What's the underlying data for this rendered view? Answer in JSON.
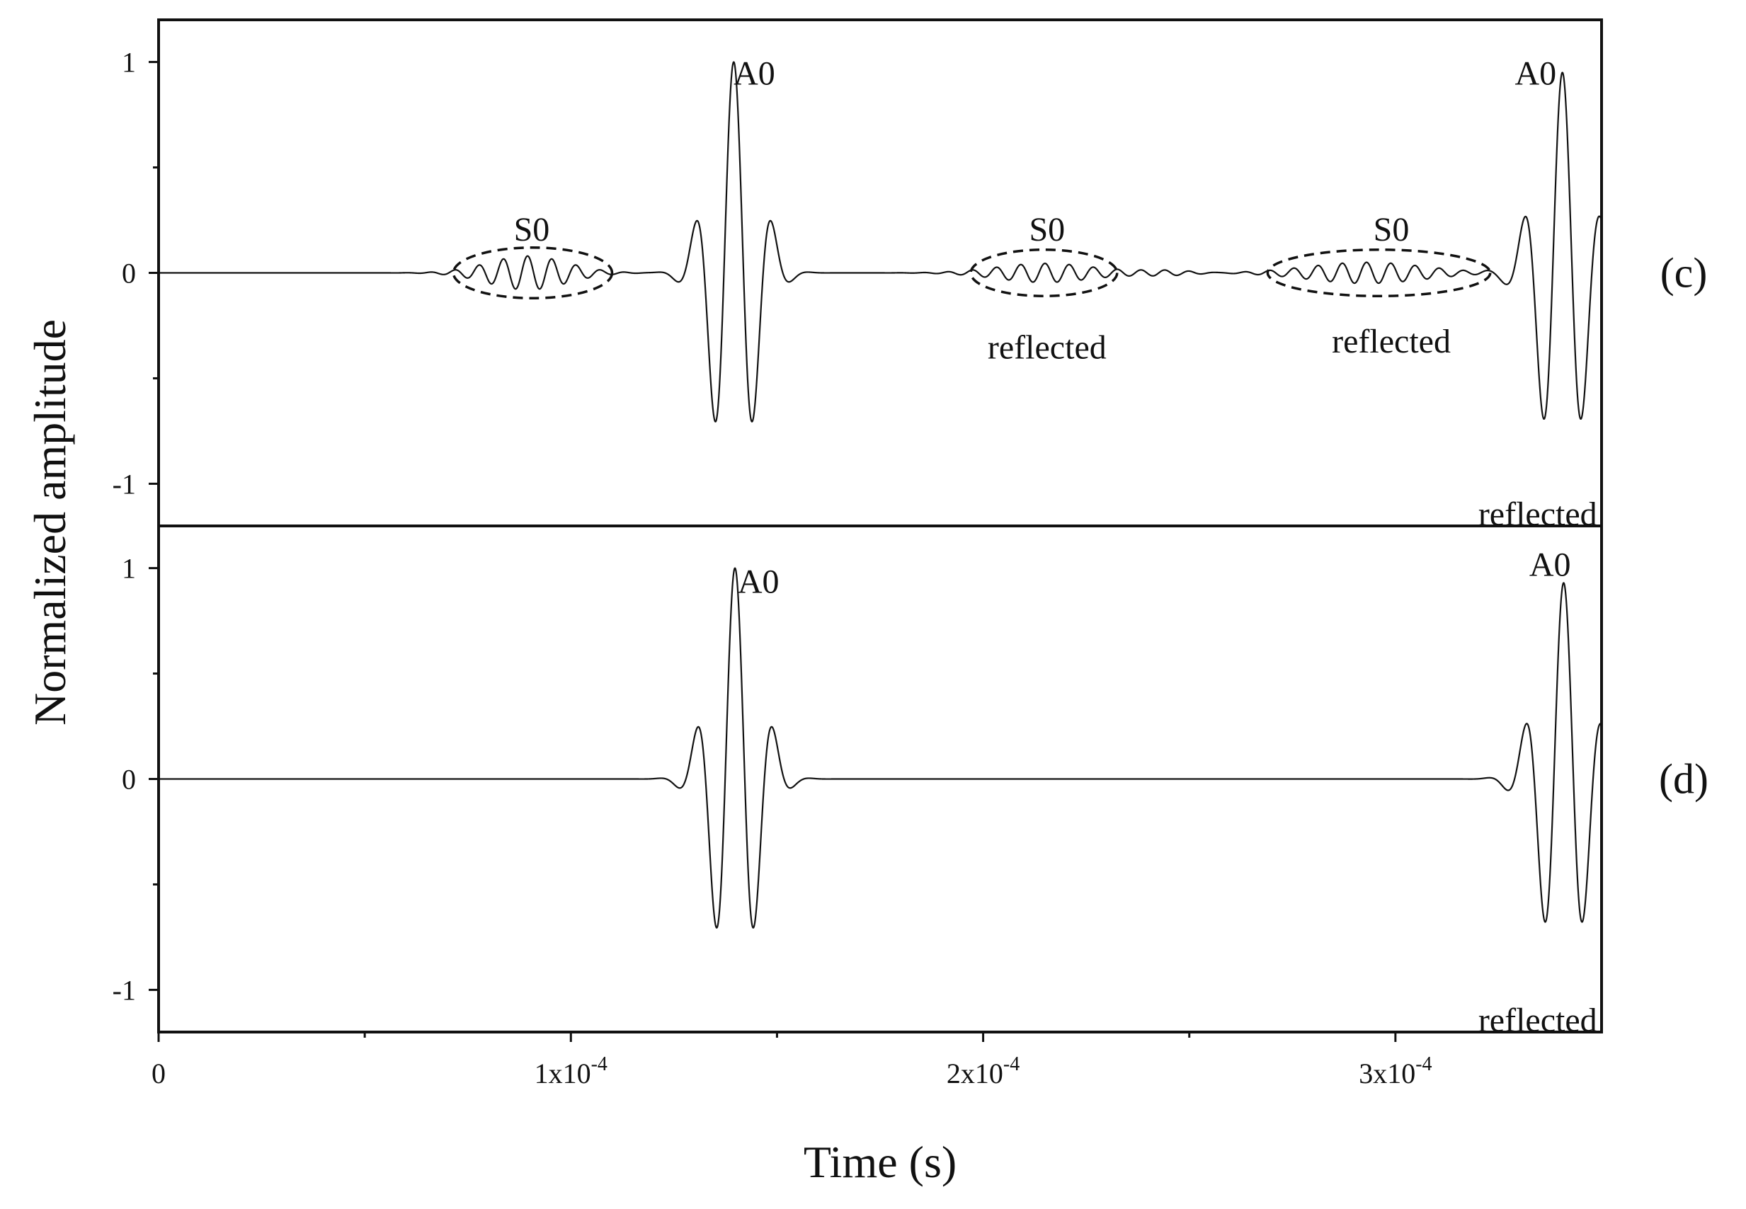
{
  "chart_data": {
    "type": "line",
    "xlabel": "Time (s)",
    "ylabel": "Normalized amplitude",
    "xlim": [
      0,
      0.00035
    ],
    "x_ticks": [
      {
        "value": 0,
        "label": "0"
      },
      {
        "value": 0.0001,
        "label": "1x10",
        "exp": "-4"
      },
      {
        "value": 0.0002,
        "label": "2x10",
        "exp": "-4"
      },
      {
        "value": 0.0003,
        "label": "3x10",
        "exp": "-4"
      }
    ],
    "x_minor_ticks": [
      5e-05,
      0.00015,
      0.00025
    ],
    "panels": [
      {
        "label": "(c)",
        "ylim": [
          -1.2,
          1.2
        ],
        "y_ticks": [
          {
            "value": 1,
            "label": "1"
          },
          {
            "value": 0,
            "label": "0"
          },
          {
            "value": -1,
            "label": "-1"
          }
        ],
        "y_minor_ticks": [
          0.5,
          -0.5
        ],
        "wave_packets": [
          {
            "mode": "S0",
            "center": 8.95e-05,
            "amplitude": 0.08,
            "width": 9.5e-06,
            "frequency": 170000
          },
          {
            "mode": "A0",
            "center": 0.0001395,
            "amplitude": 1.0,
            "width": 5.5e-06,
            "frequency": 105000
          },
          {
            "mode": "S0",
            "center": 0.000215,
            "amplitude": 0.045,
            "width": 1.15e-05,
            "frequency": 170000
          },
          {
            "mode": "S0",
            "center": 0.000244,
            "amplitude": 0.012,
            "width": 7e-06,
            "frequency": 170000
          },
          {
            "mode": "S0",
            "center": 0.000293,
            "amplitude": 0.05,
            "width": 1.4e-05,
            "frequency": 170000
          },
          {
            "mode": "A0",
            "center": 0.0003405,
            "amplitude": 0.95,
            "width": 5.8e-06,
            "frequency": 105000
          }
        ],
        "annotations": [
          {
            "text": "A0",
            "x": 0.0001445,
            "y": 0.93
          },
          {
            "text": "S0",
            "x": 9.05e-05,
            "y": 0.19
          },
          {
            "text": "S0",
            "x": 0.0002155,
            "y": 0.19
          },
          {
            "text": "S0",
            "x": 0.000299,
            "y": 0.19
          },
          {
            "text": "reflected",
            "x": 0.0002155,
            "y": -0.37
          },
          {
            "text": "reflected",
            "x": 0.000299,
            "y": -0.34
          },
          {
            "text": "A0",
            "x": 0.000334,
            "y": 0.93
          },
          {
            "text": "reflected",
            "x": 0.0003345,
            "y": -1.16
          }
        ],
        "ellipses": [
          {
            "x_min": 7.15e-05,
            "x_max": 0.00011,
            "y_min": -0.12,
            "y_max": 0.12
          },
          {
            "x_min": 0.000197,
            "x_max": 0.0002325,
            "y_min": -0.11,
            "y_max": 0.11
          },
          {
            "x_min": 0.000269,
            "x_max": 0.000323,
            "y_min": -0.11,
            "y_max": 0.11
          }
        ]
      },
      {
        "label": "(d)",
        "ylim": [
          -1.2,
          1.2
        ],
        "y_ticks": [
          {
            "value": 1,
            "label": "1"
          },
          {
            "value": 0,
            "label": "0"
          },
          {
            "value": -1,
            "label": "-1"
          }
        ],
        "y_minor_ticks": [
          0.5,
          -0.5
        ],
        "wave_packets": [
          {
            "mode": "A0",
            "center": 0.0001398,
            "amplitude": 1.0,
            "width": 5.5e-06,
            "frequency": 105000
          },
          {
            "mode": "A0",
            "center": 0.0003408,
            "amplitude": 0.93,
            "width": 5.8e-06,
            "frequency": 105000
          }
        ],
        "annotations": [
          {
            "text": "A0",
            "x": 0.0001455,
            "y": 0.92
          },
          {
            "text": "A0",
            "x": 0.0003375,
            "y": 1.0
          },
          {
            "text": "reflected",
            "x": 0.0003345,
            "y": -1.16
          }
        ],
        "ellipses": []
      }
    ]
  }
}
